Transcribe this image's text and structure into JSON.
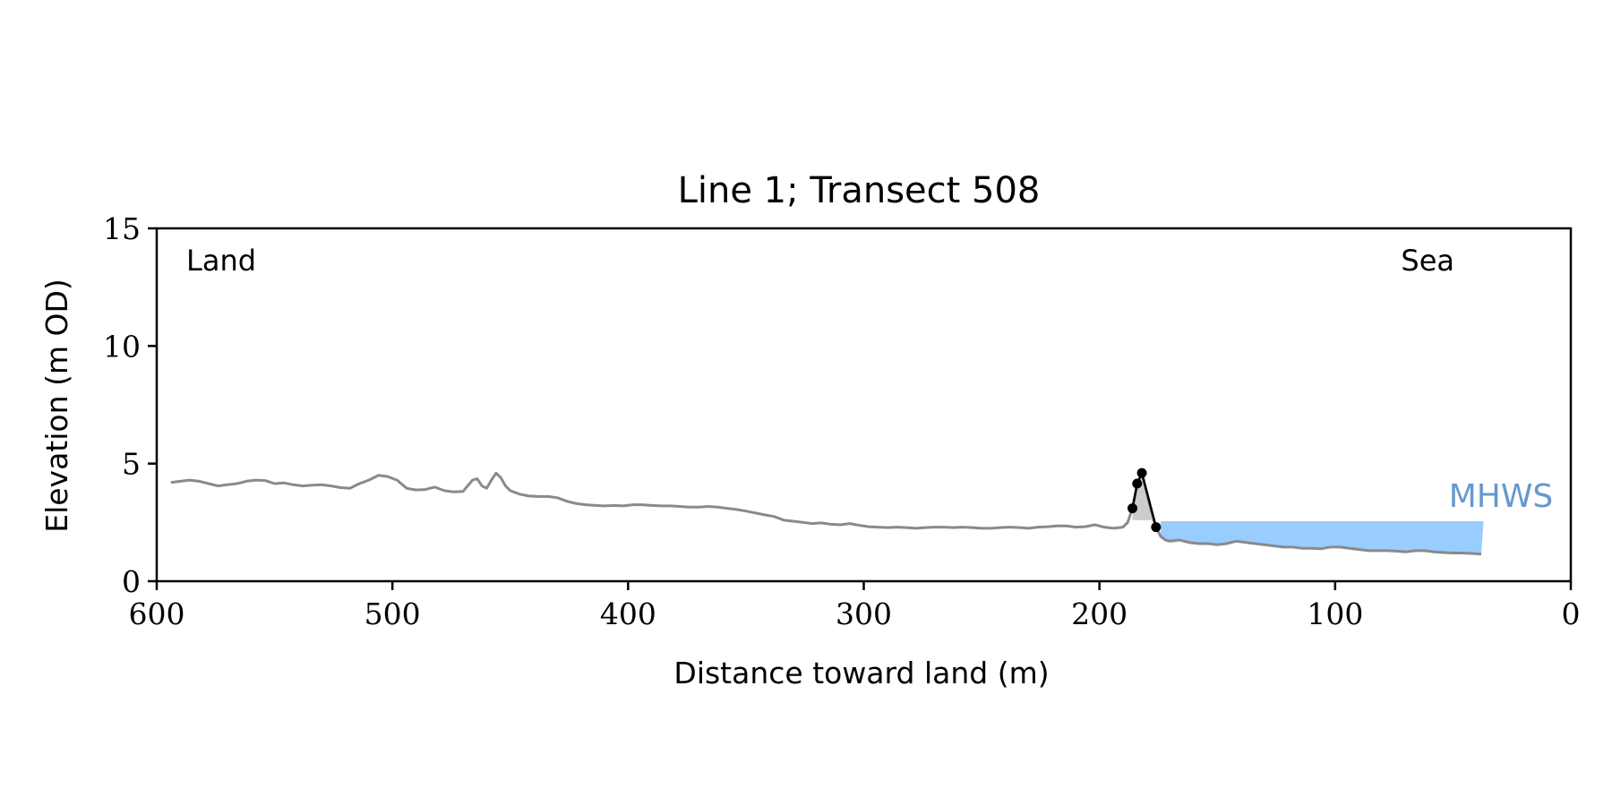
{
  "chart_data": {
    "type": "line",
    "title": "Line 1; Transect 508",
    "xlabel": "Distance toward land (m)",
    "ylabel": "Elevation (m OD)",
    "xlim": [
      600,
      0
    ],
    "ylim": [
      0,
      15
    ],
    "x_ticks": [
      600,
      500,
      400,
      300,
      200,
      100,
      0
    ],
    "y_ticks": [
      0,
      5,
      10,
      15
    ],
    "grid": false,
    "annotations": {
      "left": "Land",
      "right": "Sea",
      "mhws_label": "MHWS"
    },
    "colors": {
      "profile": "#8a8a8a",
      "dune": "#000000",
      "dune_fill": "#cccccc",
      "mhws_fill": "#99ccff",
      "mhws_text": "#6699cc"
    },
    "profile": {
      "x": [
        594,
        590,
        586,
        582,
        578,
        574,
        570,
        566,
        562,
        558,
        554,
        550,
        546,
        542,
        538,
        534,
        530,
        526,
        522,
        518,
        514,
        510,
        506,
        502,
        498,
        494,
        490,
        486,
        482,
        478,
        474,
        470,
        466,
        464,
        462,
        460,
        458,
        456,
        454,
        452,
        450,
        446,
        442,
        438,
        434,
        430,
        426,
        422,
        418,
        414,
        410,
        406,
        402,
        398,
        394,
        390,
        386,
        382,
        378,
        374,
        370,
        366,
        362,
        358,
        354,
        350,
        346,
        342,
        338,
        334,
        330,
        326,
        322,
        318,
        314,
        310,
        306,
        302,
        298,
        294,
        290,
        286,
        282,
        278,
        274,
        270,
        266,
        262,
        258,
        254,
        250,
        246,
        242,
        238,
        234,
        230,
        226,
        222,
        218,
        214,
        210,
        206,
        202,
        198,
        194,
        190,
        188,
        186,
        184,
        182,
        180,
        178,
        176,
        174,
        172,
        170,
        166,
        162,
        158,
        154,
        150,
        146,
        142,
        138,
        134,
        130,
        126,
        122,
        118,
        114,
        110,
        106,
        102,
        98,
        94,
        90,
        86,
        82,
        78,
        74,
        70,
        66,
        62,
        58,
        54,
        50,
        46,
        42,
        38
      ],
      "y": [
        4.2,
        4.25,
        4.3,
        4.25,
        4.15,
        4.05,
        4.1,
        4.15,
        4.25,
        4.3,
        4.28,
        4.15,
        4.18,
        4.1,
        4.05,
        4.08,
        4.1,
        4.05,
        3.98,
        3.95,
        4.15,
        4.3,
        4.5,
        4.45,
        4.3,
        3.95,
        3.88,
        3.9,
        4.0,
        3.85,
        3.8,
        3.82,
        4.3,
        4.35,
        4.05,
        3.95,
        4.3,
        4.6,
        4.4,
        4.05,
        3.85,
        3.7,
        3.62,
        3.6,
        3.6,
        3.55,
        3.4,
        3.3,
        3.25,
        3.22,
        3.2,
        3.22,
        3.2,
        3.25,
        3.25,
        3.22,
        3.2,
        3.2,
        3.18,
        3.15,
        3.15,
        3.18,
        3.15,
        3.1,
        3.05,
        2.98,
        2.9,
        2.82,
        2.75,
        2.6,
        2.55,
        2.5,
        2.45,
        2.48,
        2.42,
        2.4,
        2.45,
        2.38,
        2.32,
        2.3,
        2.28,
        2.3,
        2.28,
        2.25,
        2.28,
        2.3,
        2.3,
        2.28,
        2.3,
        2.28,
        2.25,
        2.25,
        2.28,
        2.3,
        2.28,
        2.25,
        2.3,
        2.32,
        2.35,
        2.35,
        2.3,
        2.32,
        2.4,
        2.3,
        2.25,
        2.3,
        2.5,
        3.1,
        4.1,
        4.6,
        3.8,
        3.0,
        2.3,
        1.9,
        1.75,
        1.7,
        1.75,
        1.65,
        1.6,
        1.6,
        1.55,
        1.6,
        1.7,
        1.65,
        1.6,
        1.55,
        1.5,
        1.45,
        1.45,
        1.4,
        1.4,
        1.38,
        1.45,
        1.45,
        1.4,
        1.35,
        1.3,
        1.3,
        1.3,
        1.28,
        1.25,
        1.3,
        1.3,
        1.25,
        1.22,
        1.2,
        1.2,
        1.18,
        1.15
      ]
    },
    "dune": {
      "x": [
        186,
        184,
        182,
        176
      ],
      "y": [
        3.1,
        4.15,
        4.6,
        2.3
      ]
    },
    "mhws": {
      "level": 2.55,
      "x_start": 174,
      "x_end": 37
    }
  }
}
